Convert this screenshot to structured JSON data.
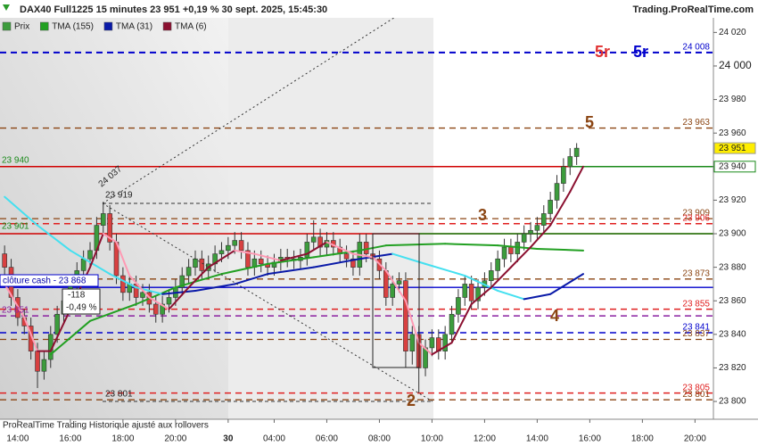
{
  "header": {
    "title": "DAX40 Full1225 15 minutes 23 951 +0,19 % 30 sept. 2025, 15:45:30",
    "brand": "Trading.ProRealTime.com"
  },
  "footer": "ProRealTime Trading  Historique ajusté aux rollovers",
  "annotations": {
    "left_level_1": "23 940",
    "left_level_2": "23 901",
    "left_level_3": "23 851",
    "cash_close": "clôture cash -  23 868",
    "change_points": "-118",
    "change_percent": "-0,49 %",
    "fib_top": "24 037",
    "swing_high": "23 919",
    "swing_low": "23 801",
    "wave_5r_red": "5r",
    "wave_5r_blue": "5r",
    "wave_5": "5",
    "wave_3": "3",
    "wave_4": "4",
    "wave_2": "2"
  },
  "chart_data": {
    "type": "candlestick",
    "xlim": [
      -0.7,
      107.8
    ],
    "xticks": [
      {
        "value": 2,
        "label": "14:00"
      },
      {
        "value": 10,
        "label": "16:00"
      },
      {
        "value": 18,
        "label": "18:00"
      },
      {
        "value": 26,
        "label": "20:00"
      },
      {
        "value": 34,
        "label": "30"
      },
      {
        "value": 41,
        "label": "04:00"
      },
      {
        "value": 49,
        "label": "06:00"
      },
      {
        "value": 57,
        "label": "08:00"
      },
      {
        "value": 65,
        "label": "10:00"
      },
      {
        "value": 73,
        "label": "12:00"
      },
      {
        "value": 81,
        "label": "14:00"
      },
      {
        "value": 89,
        "label": "16:00"
      },
      {
        "value": 97,
        "label": "18:00"
      },
      {
        "value": 105,
        "label": "20:00"
      }
    ],
    "ylim": [
      23789.4,
      24028.7
    ],
    "yticks": [
      {
        "value": 23800,
        "label": "23 800"
      },
      {
        "value": 23820,
        "label": "23 820"
      },
      {
        "value": 23840,
        "label": "23 840"
      },
      {
        "value": 23860,
        "label": "23 860"
      },
      {
        "value": 23880,
        "label": "23 880"
      },
      {
        "value": 23900,
        "label": "23 900"
      },
      {
        "value": 23920,
        "label": "23 920"
      },
      {
        "value": 23940,
        "label": "23 940"
      },
      {
        "value": 23960,
        "label": "23 960"
      },
      {
        "value": 23980,
        "label": "23 980"
      },
      {
        "value": 24000,
        "label": "24 000"
      },
      {
        "value": 24020,
        "label": "24 020"
      }
    ],
    "last_price": {
      "value": 23951,
      "label": "23 951"
    },
    "series": [
      {
        "name": "Prix",
        "up_color": "#3c9c3c",
        "down_color": "#d84040",
        "open": [
          23888,
          23880,
          23862,
          23850,
          23845,
          23830,
          23818,
          23825,
          23840,
          23852,
          23860,
          23870,
          23878,
          23885,
          23890,
          23905,
          23912,
          23895,
          23875,
          23865,
          23870,
          23862,
          23865,
          23858,
          23852,
          23858,
          23862,
          23868,
          23875,
          23880,
          23885,
          23878,
          23882,
          23888,
          23890,
          23893,
          23896,
          23890,
          23880,
          23885,
          23882,
          23880,
          23883,
          23886,
          23885,
          23884,
          23886,
          23895,
          23898,
          23892,
          23896,
          23892,
          23888,
          23885,
          23880,
          23895,
          23888,
          23885,
          23878,
          23862,
          23870,
          23872,
          23830,
          23840,
          23820,
          23832,
          23838,
          23830,
          23840,
          23852,
          23862,
          23870,
          23860,
          23868,
          23872,
          23878,
          23885,
          23892,
          23888,
          23895,
          23900,
          23902,
          23905,
          23912,
          23920,
          23930,
          23940,
          23946
        ],
        "high": [
          23893,
          23885,
          23867,
          23855,
          23850,
          23835,
          23830,
          23845,
          23857,
          23865,
          23875,
          23883,
          23890,
          23895,
          23910,
          23919,
          23917,
          23900,
          23880,
          23875,
          23875,
          23870,
          23870,
          23863,
          23863,
          23867,
          23873,
          23880,
          23885,
          23890,
          23890,
          23887,
          23893,
          23895,
          23898,
          23901,
          23901,
          23895,
          23890,
          23890,
          23887,
          23888,
          23891,
          23891,
          23890,
          23891,
          23900,
          23908,
          23903,
          23901,
          23901,
          23897,
          23893,
          23890,
          23900,
          23900,
          23893,
          23890,
          23883,
          23875,
          23877,
          23877,
          23845,
          23845,
          23837,
          23843,
          23843,
          23845,
          23857,
          23867,
          23875,
          23875,
          23873,
          23877,
          23883,
          23890,
          23897,
          23897,
          23900,
          23905,
          23907,
          23910,
          23917,
          23925,
          23935,
          23945,
          23951,
          23954
        ],
        "low": [
          23875,
          23857,
          23845,
          23840,
          23825,
          23808,
          23813,
          23820,
          23835,
          23847,
          23855,
          23865,
          23873,
          23880,
          23885,
          23900,
          23890,
          23870,
          23860,
          23860,
          23857,
          23857,
          23853,
          23847,
          23847,
          23853,
          23857,
          23863,
          23870,
          23875,
          23873,
          23873,
          23877,
          23883,
          23885,
          23888,
          23885,
          23875,
          23875,
          23877,
          23875,
          23875,
          23878,
          23880,
          23879,
          23879,
          23881,
          23890,
          23887,
          23887,
          23887,
          23883,
          23880,
          23875,
          23875,
          23883,
          23880,
          23873,
          23857,
          23857,
          23865,
          23820,
          23822,
          23805,
          23815,
          23827,
          23825,
          23825,
          23835,
          23847,
          23857,
          23855,
          23855,
          23863,
          23867,
          23873,
          23880,
          23883,
          23883,
          23890,
          23895,
          23897,
          23900,
          23907,
          23915,
          23925,
          23935,
          23941
        ],
        "close": [
          23880,
          23862,
          23850,
          23845,
          23830,
          23818,
          23825,
          23840,
          23852,
          23860,
          23870,
          23878,
          23885,
          23890,
          23905,
          23912,
          23895,
          23875,
          23865,
          23870,
          23862,
          23865,
          23858,
          23852,
          23858,
          23862,
          23868,
          23875,
          23880,
          23885,
          23878,
          23882,
          23888,
          23890,
          23893,
          23896,
          23890,
          23880,
          23885,
          23882,
          23880,
          23883,
          23886,
          23885,
          23884,
          23886,
          23895,
          23898,
          23892,
          23896,
          23892,
          23888,
          23885,
          23880,
          23895,
          23888,
          23885,
          23878,
          23862,
          23870,
          23872,
          23830,
          23840,
          23820,
          23832,
          23838,
          23830,
          23840,
          23852,
          23862,
          23870,
          23860,
          23868,
          23872,
          23878,
          23885,
          23892,
          23888,
          23895,
          23900,
          23902,
          23905,
          23912,
          23920,
          23930,
          23940,
          23946,
          23951
        ]
      },
      {
        "name": "TMA (155)",
        "color": "#22a022",
        "x": [
          7,
          13,
          20,
          26,
          33,
          40,
          47,
          54,
          58,
          67,
          75,
          81,
          88
        ],
        "values": [
          23828,
          23848,
          23858,
          23868,
          23876,
          23882,
          23886,
          23890,
          23893,
          23894,
          23893,
          23891,
          23890
        ]
      },
      {
        "name": "TMA (31)",
        "color": "#0a1aa8",
        "falling_color": "#44e0f0",
        "x": [
          0,
          5,
          10,
          16,
          20,
          24,
          29,
          35,
          40,
          47,
          54,
          59,
          64,
          70,
          75,
          79,
          83,
          88
        ],
        "values": [
          23922,
          23905,
          23890,
          23876,
          23868,
          23864,
          23866,
          23870,
          23876,
          23880,
          23885,
          23888,
          23882,
          23875,
          23866,
          23861,
          23864,
          23876
        ]
      },
      {
        "name": "TMA (6)",
        "color": "#8b1030",
        "falling_color": "#ff9ab4",
        "x": [
          0,
          3,
          5,
          7,
          10,
          13,
          15,
          17,
          19,
          22,
          25,
          28,
          31,
          35,
          38,
          42,
          46,
          49,
          53,
          56,
          58,
          61,
          63,
          65,
          68,
          71,
          74,
          77,
          80,
          83,
          86,
          88
        ],
        "values": [
          23870,
          23850,
          23830,
          23830,
          23855,
          23880,
          23900,
          23895,
          23875,
          23862,
          23855,
          23868,
          23880,
          23890,
          23888,
          23884,
          23888,
          23895,
          23888,
          23886,
          23878,
          23860,
          23835,
          23828,
          23835,
          23858,
          23868,
          23880,
          23892,
          23905,
          23925,
          23940
        ]
      }
    ],
    "levels": [
      {
        "value": 24008,
        "label": "24 008",
        "color": "#0000cc",
        "dash": true,
        "width": 2
      },
      {
        "value": 23963,
        "label": "23 963",
        "color": "#8b4513",
        "dash": true,
        "width": 1.3
      },
      {
        "value": 23940,
        "color": "#d00000",
        "dash": false,
        "width": 1.5
      },
      {
        "value": 23940,
        "label": "23 940",
        "color": "#1a8a1a",
        "dash": false,
        "width": 1.5,
        "start": 86,
        "tag": true
      },
      {
        "value": 23909,
        "label": "23 909",
        "color": "#8b4513",
        "dash": true,
        "width": 1.3
      },
      {
        "value": 23906,
        "label": "23 906",
        "color": "#e02020",
        "dash": true,
        "width": 1.5
      },
      {
        "value": 23900,
        "color": "#d00000",
        "dash": false,
        "width": 1.5
      },
      {
        "value": 23900,
        "color": "#1a8a1a",
        "dash": false,
        "width": 1.5,
        "start": 63
      },
      {
        "value": 23873,
        "label": "23 873",
        "color": "#8b4513",
        "dash": true,
        "width": 1.3
      },
      {
        "value": 23868,
        "color": "#0000cc",
        "dash": false,
        "width": 1.3
      },
      {
        "value": 23855,
        "label": "23 855",
        "color": "#e02020",
        "dash": true,
        "width": 1.5
      },
      {
        "value": 23851,
        "color": "#8a20a0",
        "dash": true,
        "width": 1.5
      },
      {
        "value": 23841,
        "label": "23 841",
        "color": "#0000cc",
        "dash": true,
        "width": 1.5
      },
      {
        "value": 23837,
        "label": "23 837",
        "color": "#8b4513",
        "dash": true,
        "width": 1.3
      },
      {
        "value": 23805,
        "label": "23 805",
        "color": "#e02020",
        "dash": true,
        "width": 1.5
      },
      {
        "value": 23801,
        "label": "23 801",
        "color": "#8b4513",
        "dash": true,
        "width": 1.3
      }
    ]
  }
}
